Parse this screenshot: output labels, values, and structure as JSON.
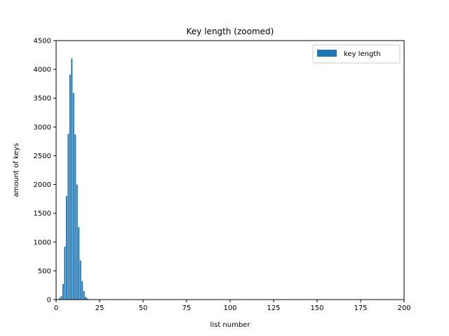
{
  "chart_data": {
    "type": "bar",
    "title": "Key length (zoomed)",
    "xlabel": "list number",
    "ylabel": "amount of keys",
    "xlim": [
      0,
      200
    ],
    "ylim": [
      0,
      4500
    ],
    "xticks": [
      0,
      25,
      50,
      75,
      100,
      125,
      150,
      175,
      200
    ],
    "yticks": [
      0,
      500,
      1000,
      1500,
      2000,
      2500,
      3000,
      3500,
      4000,
      4500
    ],
    "grid": false,
    "legend": {
      "position": "top-right",
      "entries": [
        "key length"
      ]
    },
    "series": [
      {
        "name": "key length",
        "color": "#1f77b4",
        "x": [
          1,
          2,
          3,
          4,
          5,
          6,
          7,
          8,
          9,
          10,
          11,
          12,
          13,
          14,
          15,
          16,
          17,
          18
        ],
        "values": [
          5,
          30,
          60,
          270,
          920,
          1800,
          2880,
          3910,
          4190,
          3590,
          2870,
          2000,
          1260,
          680,
          320,
          150,
          50,
          20
        ]
      }
    ]
  }
}
